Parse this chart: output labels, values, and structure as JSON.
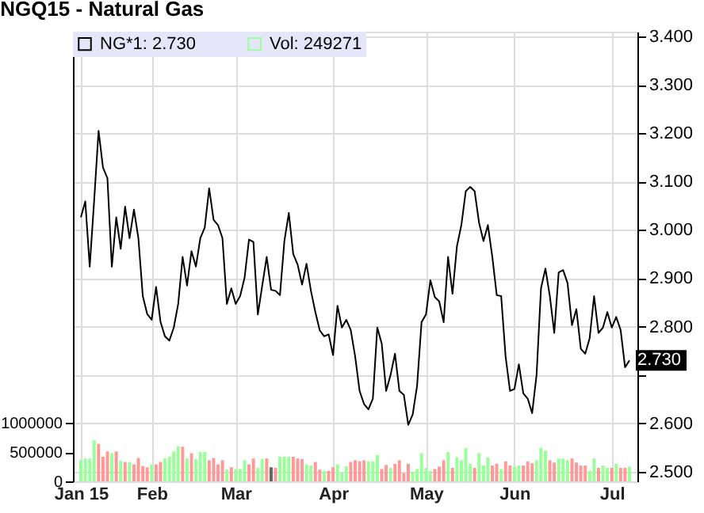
{
  "chart_data": {
    "type": "line",
    "title": "NGQ15 - Natural Gas",
    "categories": [
      "Jan 15",
      null,
      null,
      null,
      null,
      null,
      null,
      null,
      null,
      null,
      null,
      null,
      null,
      null,
      null,
      null,
      "Feb",
      null,
      null,
      null,
      null,
      null,
      null,
      null,
      null,
      null,
      null,
      null,
      null,
      null,
      null,
      null,
      null,
      null,
      null,
      "Mar",
      null,
      null,
      null,
      null,
      null,
      null,
      null,
      null,
      null,
      null,
      null,
      null,
      null,
      null,
      null,
      null,
      null,
      null,
      null,
      null,
      null,
      "Apr",
      null,
      null,
      null,
      null,
      null,
      null,
      null,
      null,
      null,
      null,
      null,
      null,
      null,
      null,
      null,
      null,
      null,
      null,
      null,
      null,
      "May",
      null,
      null,
      null,
      null,
      null,
      null,
      null,
      null,
      null,
      null,
      null,
      null,
      null,
      null,
      null,
      null,
      null,
      null,
      null,
      "Jun",
      null,
      null,
      null,
      null,
      null,
      null,
      null,
      null,
      null,
      null,
      null,
      null,
      null,
      null,
      null,
      null,
      null,
      null,
      null,
      null,
      null,
      "Jul",
      null,
      null,
      null,
      null
    ],
    "ylim": [
      2.48,
      3.41
    ],
    "yticks": [
      {
        "value": 2.5,
        "label": "2.500"
      },
      {
        "value": 2.6,
        "label": "2.600"
      },
      {
        "value": 2.7,
        "label": null
      },
      {
        "value": 2.8,
        "label": "2.800"
      },
      {
        "value": 2.9,
        "label": "2.900"
      },
      {
        "value": 3.0,
        "label": "3.000"
      },
      {
        "value": 3.1,
        "label": "3.100"
      },
      {
        "value": 3.2,
        "label": "3.200"
      },
      {
        "value": 3.3,
        "label": "3.300"
      },
      {
        "value": 3.4,
        "label": "3.400"
      }
    ],
    "y2lim": [
      0,
      7680000
    ],
    "y2ticks": [
      0,
      500000,
      1000000
    ],
    "grid": true,
    "line_style": "solid",
    "legend": "top left",
    "annotations": [
      {
        "text": "2.730",
        "y": 2.73
      }
    ],
    "series": [
      {
        "name": "NG*1: 2.730",
        "color": "#000000",
        "values": [
          3.026,
          3.059,
          2.924,
          3.06,
          3.205,
          3.129,
          3.107,
          2.924,
          3.026,
          2.961,
          3.048,
          2.983,
          3.042,
          2.983,
          2.863,
          2.826,
          2.814,
          2.882,
          2.81,
          2.78,
          2.771,
          2.798,
          2.847,
          2.944,
          2.885,
          2.956,
          2.924,
          2.983,
          3.005,
          3.086,
          3.021,
          3.01,
          2.983,
          2.847,
          2.879,
          2.847,
          2.863,
          2.901,
          2.98,
          2.975,
          2.825,
          2.885,
          2.944,
          2.876,
          2.874,
          2.865,
          2.977,
          3.035,
          2.95,
          2.928,
          2.887,
          2.93,
          2.874,
          2.83,
          2.792,
          2.78,
          2.784,
          2.741,
          2.843,
          2.798,
          2.814,
          2.793,
          2.738,
          2.667,
          2.64,
          2.629,
          2.651,
          2.798,
          2.765,
          2.667,
          2.7,
          2.744,
          2.667,
          2.659,
          2.597,
          2.618,
          2.678,
          2.809,
          2.825,
          2.896,
          2.861,
          2.852,
          2.809,
          2.944,
          2.868,
          2.966,
          3.01,
          3.08,
          3.089,
          3.08,
          3.015,
          2.977,
          3.01,
          2.944,
          2.865,
          2.863,
          2.738,
          2.667,
          2.671,
          2.722,
          2.662,
          2.651,
          2.621,
          2.7,
          2.879,
          2.92,
          2.863,
          2.787,
          2.912,
          2.917,
          2.89,
          2.803,
          2.836,
          2.754,
          2.744,
          2.776,
          2.863,
          2.787,
          2.798,
          2.83,
          2.798,
          2.82,
          2.793,
          2.716,
          2.73
        ]
      },
      {
        "name": "Vol: 249271",
        "type": "bar",
        "axis": "y2",
        "color": "#99ff99",
        "values": [
          360000,
          390000,
          390000,
          700000,
          640000,
          420000,
          510000,
          480000,
          510000,
          350000,
          330000,
          330000,
          290000,
          400000,
          260000,
          240000,
          290000,
          290000,
          330000,
          390000,
          420000,
          510000,
          600000,
          590000,
          390000,
          480000,
          380000,
          500000,
          500000,
          360000,
          400000,
          290000,
          360000,
          200000,
          240000,
          210000,
          210000,
          360000,
          290000,
          390000,
          230000,
          380000,
          390000,
          240000,
          230000,
          420000,
          420000,
          420000,
          420000,
          390000,
          380000,
          290000,
          270000,
          330000,
          200000,
          180000,
          180000,
          240000,
          290000,
          150000,
          260000,
          330000,
          360000,
          340000,
          360000,
          340000,
          340000,
          450000,
          210000,
          280000,
          230000,
          300000,
          360000,
          140000,
          300000,
          160000,
          210000,
          480000,
          230000,
          180000,
          210000,
          250000,
          360000,
          500000,
          230000,
          410000,
          360000,
          570000,
          300000,
          230000,
          480000,
          270000,
          410000,
          270000,
          300000,
          210000,
          340000,
          270000,
          250000,
          270000,
          270000,
          340000,
          310000,
          360000,
          570000,
          520000,
          360000,
          320000,
          390000,
          390000,
          360000,
          390000,
          320000,
          270000,
          270000,
          180000,
          390000,
          230000,
          270000,
          230000,
          230000,
          300000,
          230000,
          230000,
          250000
        ],
        "colors": [
          "#99ff99",
          "#99ff99",
          "#99ff99",
          "#99ff99",
          "#ff9999",
          "#ff9999",
          "#ff9999",
          "#99ff99",
          "#ff9999",
          "#99ff99",
          "#ff9999",
          "#99ff99",
          "#ff9999",
          "#ff9999",
          "#ff9999",
          "#ff9999",
          "#99ff99",
          "#ff9999",
          "#ff9999",
          "#99ff99",
          "#99ff99",
          "#99ff99",
          "#99ff99",
          "#ff9999",
          "#99ff99",
          "#ff9999",
          "#99ff99",
          "#99ff99",
          "#99ff99",
          "#ff9999",
          "#ff9999",
          "#ff9999",
          "#ff9999",
          "#99ff99",
          "#ff9999",
          "#99ff99",
          "#99ff99",
          "#99ff99",
          "#ff9999",
          "#ff9999",
          "#99ff99",
          "#99ff99",
          "#ff9999",
          "#666666",
          "#ff9999",
          "#99ff99",
          "#99ff99",
          "#99ff99",
          "#ff9999",
          "#ff9999",
          "#ff9999",
          "#99ff99",
          "#99ff99",
          "#ff9999",
          "#ff9999",
          "#99ff99",
          "#ff9999",
          "#ff9999",
          "#99ff99",
          "#99ff99",
          "#99ff99",
          "#ff9999",
          "#ff9999",
          "#ff9999",
          "#ff9999",
          "#99ff99",
          "#99ff99",
          "#99ff99",
          "#ff9999",
          "#ff9999",
          "#99ff99",
          "#ff9999",
          "#ff9999",
          "#ff9999",
          "#ff9999",
          "#99ff99",
          "#99ff99",
          "#99ff99",
          "#99ff99",
          "#99ff99",
          "#ff9999",
          "#ff9999",
          "#ff9999",
          "#99ff99",
          "#ff9999",
          "#99ff99",
          "#99ff99",
          "#99ff99",
          "#99ff99",
          "#ff9999",
          "#99ff99",
          "#99ff99",
          "#99ff99",
          "#ff9999",
          "#ff9999",
          "#99ff99",
          "#ff9999",
          "#ff9999",
          "#99ff99",
          "#99ff99",
          "#ff9999",
          "#ff9999",
          "#ff9999",
          "#99ff99",
          "#99ff99",
          "#99ff99",
          "#ff9999",
          "#ff9999",
          "#99ff99",
          "#99ff99",
          "#99ff99",
          "#ff9999",
          "#ff9999",
          "#ff9999",
          "#ff9999",
          "#99ff99",
          "#99ff99",
          "#ff9999",
          "#99ff99",
          "#99ff99",
          "#ff9999",
          "#99ff99",
          "#ff9999",
          "#ff9999",
          "#99ff99"
        ]
      }
    ]
  }
}
